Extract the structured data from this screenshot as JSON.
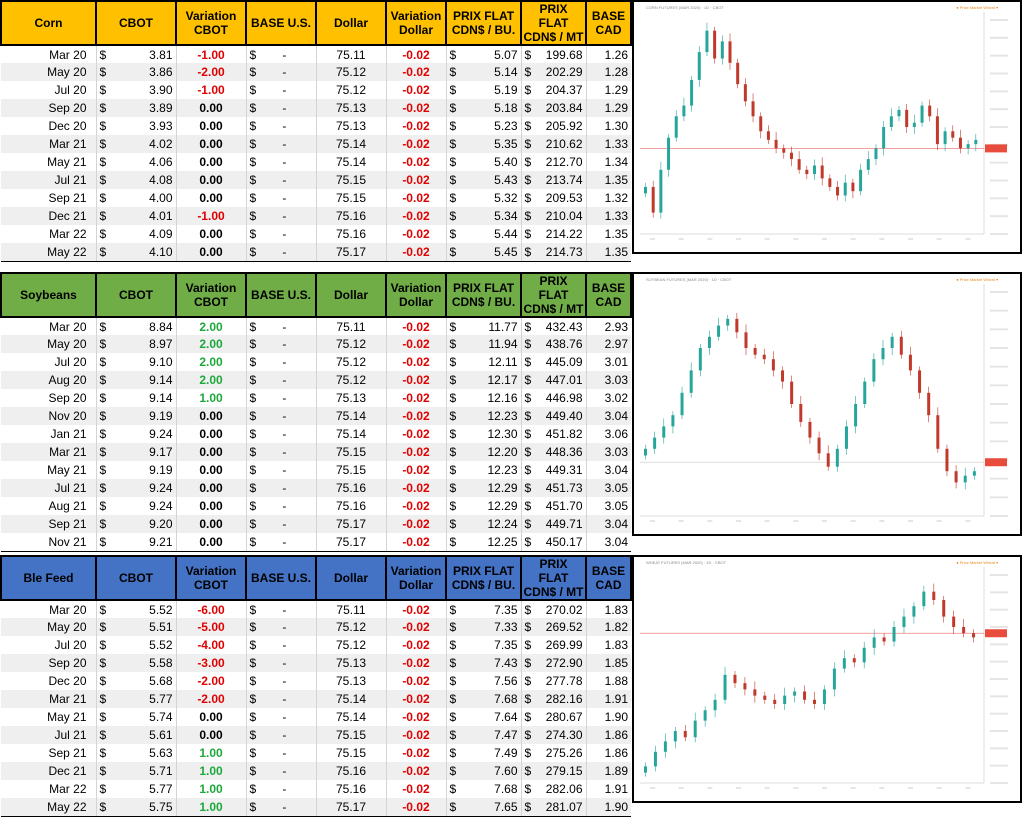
{
  "columns": [
    "CBOT",
    "Variation CBOT",
    "BASE U.S.",
    "Dollar",
    "Variation Dollar",
    "PRIX FLAT CDN$ / BU.",
    "PRIX FLAT CDN$ / MT",
    "BASE CAD"
  ],
  "currency_symbol": "$",
  "dash": "-",
  "tables": [
    {
      "name": "Corn",
      "header_color": "#ffc000",
      "rows": [
        {
          "month": "Mar 20",
          "cbot": "3.81",
          "var": "-1.00",
          "dollar": "75.11",
          "var_dollar": "-0.02",
          "bu": "5.07",
          "mt": "199.68",
          "cad": "1.26"
        },
        {
          "month": "May 20",
          "cbot": "3.86",
          "var": "-2.00",
          "dollar": "75.12",
          "var_dollar": "-0.02",
          "bu": "5.14",
          "mt": "202.29",
          "cad": "1.28"
        },
        {
          "month": "Jul 20",
          "cbot": "3.90",
          "var": "-1.00",
          "dollar": "75.12",
          "var_dollar": "-0.02",
          "bu": "5.19",
          "mt": "204.37",
          "cad": "1.29"
        },
        {
          "month": "Sep 20",
          "cbot": "3.89",
          "var": "0.00",
          "dollar": "75.13",
          "var_dollar": "-0.02",
          "bu": "5.18",
          "mt": "203.84",
          "cad": "1.29"
        },
        {
          "month": "Dec 20",
          "cbot": "3.93",
          "var": "0.00",
          "dollar": "75.13",
          "var_dollar": "-0.02",
          "bu": "5.23",
          "mt": "205.92",
          "cad": "1.30"
        },
        {
          "month": "Mar 21",
          "cbot": "4.02",
          "var": "0.00",
          "dollar": "75.14",
          "var_dollar": "-0.02",
          "bu": "5.35",
          "mt": "210.62",
          "cad": "1.33"
        },
        {
          "month": "May 21",
          "cbot": "4.06",
          "var": "0.00",
          "dollar": "75.14",
          "var_dollar": "-0.02",
          "bu": "5.40",
          "mt": "212.70",
          "cad": "1.34"
        },
        {
          "month": "Jul 21",
          "cbot": "4.08",
          "var": "0.00",
          "dollar": "75.15",
          "var_dollar": "-0.02",
          "bu": "5.43",
          "mt": "213.74",
          "cad": "1.35"
        },
        {
          "month": "Sep 21",
          "cbot": "4.00",
          "var": "0.00",
          "dollar": "75.15",
          "var_dollar": "-0.02",
          "bu": "5.32",
          "mt": "209.53",
          "cad": "1.32"
        },
        {
          "month": "Dec 21",
          "cbot": "4.01",
          "var": "-1.00",
          "dollar": "75.16",
          "var_dollar": "-0.02",
          "bu": "5.34",
          "mt": "210.04",
          "cad": "1.33"
        },
        {
          "month": "Mar 22",
          "cbot": "4.09",
          "var": "0.00",
          "dollar": "75.16",
          "var_dollar": "-0.02",
          "bu": "5.44",
          "mt": "214.22",
          "cad": "1.35"
        },
        {
          "month": "May 22",
          "cbot": "4.10",
          "var": "0.00",
          "dollar": "75.17",
          "var_dollar": "-0.02",
          "bu": "5.45",
          "mt": "214.73",
          "cad": "1.35"
        }
      ]
    },
    {
      "name": "Soybeans",
      "header_color": "#70ad47",
      "rows": [
        {
          "month": "Mar 20",
          "cbot": "8.84",
          "var": "2.00",
          "dollar": "75.11",
          "var_dollar": "-0.02",
          "bu": "11.77",
          "mt": "432.43",
          "cad": "2.93"
        },
        {
          "month": "May 20",
          "cbot": "8.97",
          "var": "2.00",
          "dollar": "75.12",
          "var_dollar": "-0.02",
          "bu": "11.94",
          "mt": "438.76",
          "cad": "2.97"
        },
        {
          "month": "Jul 20",
          "cbot": "9.10",
          "var": "2.00",
          "dollar": "75.12",
          "var_dollar": "-0.02",
          "bu": "12.11",
          "mt": "445.09",
          "cad": "3.01"
        },
        {
          "month": "Aug 20",
          "cbot": "9.14",
          "var": "2.00",
          "dollar": "75.12",
          "var_dollar": "-0.02",
          "bu": "12.17",
          "mt": "447.01",
          "cad": "3.03"
        },
        {
          "month": "Sep 20",
          "cbot": "9.14",
          "var": "1.00",
          "dollar": "75.13",
          "var_dollar": "-0.02",
          "bu": "12.16",
          "mt": "446.98",
          "cad": "3.02"
        },
        {
          "month": "Nov 20",
          "cbot": "9.19",
          "var": "0.00",
          "dollar": "75.14",
          "var_dollar": "-0.02",
          "bu": "12.23",
          "mt": "449.40",
          "cad": "3.04"
        },
        {
          "month": "Jan 21",
          "cbot": "9.24",
          "var": "0.00",
          "dollar": "75.14",
          "var_dollar": "-0.02",
          "bu": "12.30",
          "mt": "451.82",
          "cad": "3.06"
        },
        {
          "month": "Mar 21",
          "cbot": "9.17",
          "var": "0.00",
          "dollar": "75.15",
          "var_dollar": "-0.02",
          "bu": "12.20",
          "mt": "448.36",
          "cad": "3.03"
        },
        {
          "month": "May 21",
          "cbot": "9.19",
          "var": "0.00",
          "dollar": "75.15",
          "var_dollar": "-0.02",
          "bu": "12.23",
          "mt": "449.31",
          "cad": "3.04"
        },
        {
          "month": "Jul 21",
          "cbot": "9.24",
          "var": "0.00",
          "dollar": "75.16",
          "var_dollar": "-0.02",
          "bu": "12.29",
          "mt": "451.73",
          "cad": "3.05"
        },
        {
          "month": "Aug 21",
          "cbot": "9.24",
          "var": "0.00",
          "dollar": "75.16",
          "var_dollar": "-0.02",
          "bu": "12.29",
          "mt": "451.70",
          "cad": "3.05"
        },
        {
          "month": "Sep 21",
          "cbot": "9.20",
          "var": "0.00",
          "dollar": "75.17",
          "var_dollar": "-0.02",
          "bu": "12.24",
          "mt": "449.71",
          "cad": "3.04"
        },
        {
          "month": "Nov 21",
          "cbot": "9.21",
          "var": "0.00",
          "dollar": "75.17",
          "var_dollar": "-0.02",
          "bu": "12.25",
          "mt": "450.17",
          "cad": "3.04"
        }
      ]
    },
    {
      "name": "Ble Feed",
      "header_color": "#4472c4",
      "rows": [
        {
          "month": "Mar 20",
          "cbot": "5.52",
          "var": "-6.00",
          "dollar": "75.11",
          "var_dollar": "-0.02",
          "bu": "7.35",
          "mt": "270.02",
          "cad": "1.83"
        },
        {
          "month": "May 20",
          "cbot": "5.51",
          "var": "-5.00",
          "dollar": "75.12",
          "var_dollar": "-0.02",
          "bu": "7.33",
          "mt": "269.52",
          "cad": "1.82"
        },
        {
          "month": "Jul 20",
          "cbot": "5.52",
          "var": "-4.00",
          "dollar": "75.12",
          "var_dollar": "-0.02",
          "bu": "7.35",
          "mt": "269.99",
          "cad": "1.83"
        },
        {
          "month": "Sep 20",
          "cbot": "5.58",
          "var": "-3.00",
          "dollar": "75.13",
          "var_dollar": "-0.02",
          "bu": "7.43",
          "mt": "272.90",
          "cad": "1.85"
        },
        {
          "month": "Dec 20",
          "cbot": "5.68",
          "var": "-2.00",
          "dollar": "75.13",
          "var_dollar": "-0.02",
          "bu": "7.56",
          "mt": "277.78",
          "cad": "1.88"
        },
        {
          "month": "Mar 21",
          "cbot": "5.77",
          "var": "-2.00",
          "dollar": "75.14",
          "var_dollar": "-0.02",
          "bu": "7.68",
          "mt": "282.16",
          "cad": "1.91"
        },
        {
          "month": "May 21",
          "cbot": "5.74",
          "var": "0.00",
          "dollar": "75.14",
          "var_dollar": "-0.02",
          "bu": "7.64",
          "mt": "280.67",
          "cad": "1.90"
        },
        {
          "month": "Jul 21",
          "cbot": "5.61",
          "var": "0.00",
          "dollar": "75.15",
          "var_dollar": "-0.02",
          "bu": "7.47",
          "mt": "274.30",
          "cad": "1.86"
        },
        {
          "month": "Sep 21",
          "cbot": "5.63",
          "var": "1.00",
          "dollar": "75.15",
          "var_dollar": "-0.02",
          "bu": "7.49",
          "mt": "275.26",
          "cad": "1.86"
        },
        {
          "month": "Dec 21",
          "cbot": "5.71",
          "var": "1.00",
          "dollar": "75.16",
          "var_dollar": "-0.02",
          "bu": "7.60",
          "mt": "279.15",
          "cad": "1.89"
        },
        {
          "month": "Mar 22",
          "cbot": "5.77",
          "var": "1.00",
          "dollar": "75.16",
          "var_dollar": "-0.02",
          "bu": "7.68",
          "mt": "282.06",
          "cad": "1.91"
        },
        {
          "month": "May 22",
          "cbot": "5.75",
          "var": "1.00",
          "dollar": "75.17",
          "var_dollar": "-0.02",
          "bu": "7.65",
          "mt": "281.07",
          "cad": "1.90"
        }
      ]
    }
  ],
  "charts": [
    {
      "title": "CORN FUTURES (MAR 2020) · 1D · CBOT",
      "legend": "● Price Market  Wheat ▾",
      "line_color": "#f08080",
      "up_color": "#26a69a",
      "down_color": "#c0392b",
      "closes": [
        0.22,
        0.1,
        0.3,
        0.45,
        0.55,
        0.6,
        0.72,
        0.85,
        0.95,
        0.82,
        0.9,
        0.8,
        0.7,
        0.62,
        0.55,
        0.48,
        0.44,
        0.4,
        0.38,
        0.35,
        0.3,
        0.28,
        0.32,
        0.26,
        0.22,
        0.18,
        0.24,
        0.2,
        0.3,
        0.35,
        0.4,
        0.5,
        0.55,
        0.58,
        0.5,
        0.52,
        0.6,
        0.55,
        0.42,
        0.48,
        0.45,
        0.4,
        0.42,
        0.44
      ],
      "ref": 0.4
    },
    {
      "title": "SOYBEAN FUTURES (MAR 2020) · 1D · CBOT",
      "legend": "● Price Market  Wheat ▾",
      "line_color": "#d0d0d0",
      "up_color": "#26a69a",
      "down_color": "#c0392b",
      "closes": [
        0.3,
        0.35,
        0.4,
        0.45,
        0.55,
        0.65,
        0.75,
        0.8,
        0.85,
        0.88,
        0.82,
        0.75,
        0.72,
        0.7,
        0.65,
        0.6,
        0.5,
        0.42,
        0.35,
        0.28,
        0.22,
        0.3,
        0.4,
        0.5,
        0.6,
        0.7,
        0.75,
        0.8,
        0.72,
        0.65,
        0.55,
        0.45,
        0.3,
        0.2,
        0.15,
        0.18,
        0.2
      ],
      "ref": 0.24
    },
    {
      "title": "WHEAT FUTURES (MAR 2020) · 1D · CBOT",
      "legend": "● Price Market  Wheat ▾",
      "line_color": "#f08080",
      "up_color": "#26a69a",
      "down_color": "#c0392b",
      "closes": [
        0.08,
        0.15,
        0.2,
        0.25,
        0.22,
        0.3,
        0.35,
        0.4,
        0.52,
        0.48,
        0.45,
        0.42,
        0.4,
        0.38,
        0.42,
        0.44,
        0.4,
        0.38,
        0.45,
        0.55,
        0.6,
        0.58,
        0.65,
        0.7,
        0.68,
        0.75,
        0.8,
        0.85,
        0.92,
        0.88,
        0.8,
        0.75,
        0.72,
        0.7
      ],
      "ref": 0.72
    }
  ]
}
